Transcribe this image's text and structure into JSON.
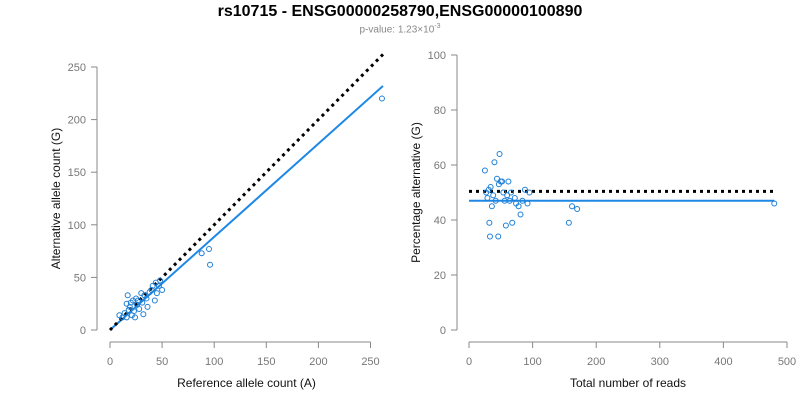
{
  "title": "rs10715 - ENSG00000258790,ENSG00000100890",
  "subtitle": {
    "prefix": "p-value: 1.23×10",
    "exponent": "-3"
  },
  "colors": {
    "points": "#1f7fd6",
    "fit_line": "#1e88e5",
    "reference_line": "#000000",
    "axis": "#888888"
  },
  "chart_data": [
    {
      "type": "scatter",
      "title": "",
      "xlabel": "Reference allele count (A)",
      "ylabel": "Alternative allele count (G)",
      "xlim": [
        0,
        262
      ],
      "ylim": [
        0,
        250
      ],
      "xticks": [
        0,
        50,
        100,
        150,
        200,
        250
      ],
      "yticks": [
        0,
        50,
        100,
        150,
        200,
        250
      ],
      "grid": false,
      "series": [
        {
          "points": [
            [
              9,
              14
            ],
            [
              12,
              12
            ],
            [
              14,
              16
            ],
            [
              16,
              12
            ],
            [
              16,
              25
            ],
            [
              17,
              33
            ],
            [
              18,
              19
            ],
            [
              19,
              22
            ],
            [
              20,
              26
            ],
            [
              21,
              14
            ],
            [
              22,
              28
            ],
            [
              23,
              18
            ],
            [
              24,
              12
            ],
            [
              25,
              30
            ],
            [
              26,
              24
            ],
            [
              27,
              28
            ],
            [
              28,
              20
            ],
            [
              30,
              35
            ],
            [
              31,
              26
            ],
            [
              32,
              15
            ],
            [
              33,
              33
            ],
            [
              35,
              30
            ],
            [
              36,
              22
            ],
            [
              38,
              36
            ],
            [
              40,
              38
            ],
            [
              41,
              42
            ],
            [
              43,
              28
            ],
            [
              44,
              45
            ],
            [
              45,
              35
            ],
            [
              47,
              42
            ],
            [
              48,
              47
            ],
            [
              50,
              38
            ],
            [
              88,
              73
            ],
            [
              95,
              77
            ],
            [
              96,
              62
            ],
            [
              261,
              220
            ]
          ]
        }
      ],
      "lines": [
        {
          "role": "fit",
          "style": "solid",
          "from": [
            0,
            0
          ],
          "to": [
            262,
            232
          ]
        },
        {
          "role": "expected",
          "style": "dotted",
          "from": [
            0,
            0
          ],
          "to": [
            262,
            262
          ]
        }
      ]
    },
    {
      "type": "scatter",
      "title": "",
      "xlabel": "Total number of reads",
      "ylabel": "Percentage alternative (G)",
      "xlim": [
        0,
        500
      ],
      "ylim": [
        0,
        100
      ],
      "xticks": [
        0,
        100,
        200,
        300,
        400,
        500
      ],
      "yticks": [
        0,
        20,
        40,
        60,
        80,
        100
      ],
      "grid": false,
      "series": [
        {
          "points": [
            [
              25,
              58
            ],
            [
              27,
              50
            ],
            [
              29,
              48
            ],
            [
              31,
              51
            ],
            [
              32,
              39
            ],
            [
              33,
              34
            ],
            [
              34,
              52
            ],
            [
              36,
              45
            ],
            [
              38,
              49
            ],
            [
              40,
              61
            ],
            [
              42,
              47
            ],
            [
              44,
              55
            ],
            [
              46,
              34
            ],
            [
              47,
              53
            ],
            [
              48,
              64
            ],
            [
              50,
              54
            ],
            [
              52,
              54
            ],
            [
              54,
              50
            ],
            [
              56,
              47
            ],
            [
              58,
              38
            ],
            [
              60,
              49
            ],
            [
              62,
              54
            ],
            [
              64,
              47
            ],
            [
              66,
              50
            ],
            [
              68,
              39
            ],
            [
              72,
              48
            ],
            [
              74,
              46
            ],
            [
              78,
              45
            ],
            [
              81,
              42
            ],
            [
              84,
              47
            ],
            [
              88,
              51
            ],
            [
              92,
              46
            ],
            [
              95,
              50
            ],
            [
              157,
              39
            ],
            [
              162,
              45
            ],
            [
              170,
              44
            ],
            [
              480,
              46
            ]
          ]
        }
      ],
      "lines": [
        {
          "role": "fit",
          "style": "solid",
          "from": [
            0,
            47
          ],
          "to": [
            480,
            47
          ]
        },
        {
          "role": "expected",
          "style": "dotted",
          "from": [
            0,
            50.4
          ],
          "to": [
            480,
            50.4
          ]
        }
      ]
    }
  ]
}
